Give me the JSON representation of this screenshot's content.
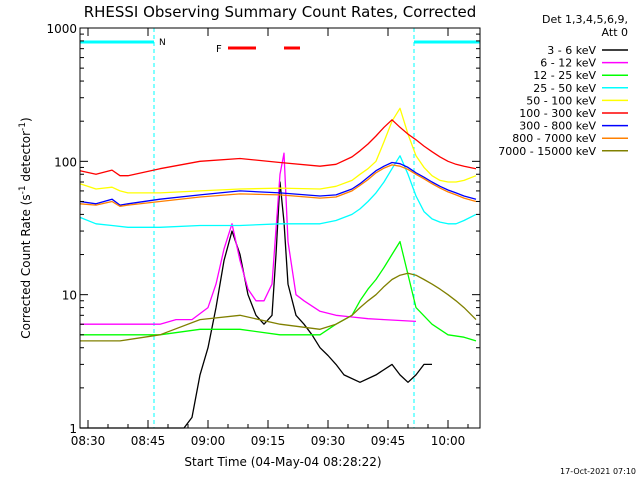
{
  "chart_data": {
    "type": "line",
    "title": "RHESSI Observing Summary Count Rates, Corrected",
    "xlabel": "Start Time (04-May-04 08:28:22)",
    "ylabel_main": "Corrected Count Rate (s",
    "ylabel_sup1": "-1",
    "ylabel_mid": " detector",
    "ylabel_sup2": "-1",
    "ylabel_end": ")",
    "x_unit": "minutes since 08:28",
    "xlim": [
      0,
      100
    ],
    "ylim": [
      1,
      1000
    ],
    "yscale": "log",
    "x_ticks": [
      {
        "v": 2,
        "label": "08:30"
      },
      {
        "v": 17,
        "label": "08:45"
      },
      {
        "v": 32,
        "label": "09:00"
      },
      {
        "v": 47,
        "label": "09:15"
      },
      {
        "v": 62,
        "label": "09:30"
      },
      {
        "v": 77,
        "label": "09:45"
      },
      {
        "v": 92,
        "label": "10:00"
      }
    ],
    "y_ticks": [
      {
        "v": 1,
        "label": "1"
      },
      {
        "v": 10,
        "label": "10"
      },
      {
        "v": 100,
        "label": "100"
      },
      {
        "v": 1000,
        "label": "1000"
      }
    ],
    "legend": {
      "placement": "right",
      "header1": "Det 1,3,4,5,6,9,",
      "header2": "Att 0"
    },
    "annotations": {
      "night_label": "N",
      "flare_label": "F",
      "timestamp": "17-Oct-2021 07:10"
    },
    "night_intervals": [
      [
        0,
        18.5
      ],
      [
        83.5,
        100
      ]
    ],
    "flare_marks": [
      [
        37,
        44
      ],
      [
        51,
        55
      ]
    ],
    "series": [
      {
        "name": "3 - 6 keV",
        "color": "#000000",
        "x": [
          0,
          18,
          26,
          28,
          30,
          32,
          34,
          36,
          38,
          40,
          42,
          44,
          46,
          48,
          49,
          50,
          51,
          52,
          54,
          56,
          58,
          60,
          62,
          64,
          66,
          70,
          74,
          78,
          80,
          82,
          84,
          86,
          88
        ],
        "y": [
          1,
          1,
          1,
          1.2,
          2.5,
          4,
          8,
          18,
          30,
          20,
          10,
          7,
          6,
          7,
          20,
          70,
          35,
          12,
          7,
          6,
          5,
          4,
          3.5,
          3,
          2.5,
          2.2,
          2.5,
          3,
          2.5,
          2.2,
          2.5,
          3,
          3
        ]
      },
      {
        "name": "6 - 12 keV",
        "color": "#ff00ff",
        "x": [
          0,
          20,
          24,
          28,
          32,
          34,
          36,
          38,
          40,
          42,
          44,
          46,
          48,
          50,
          51,
          52,
          54,
          56,
          60,
          64,
          68,
          72,
          76,
          80,
          84
        ],
        "y": [
          6,
          6,
          6.5,
          6.5,
          8,
          12,
          22,
          34,
          18,
          11,
          9,
          9,
          12,
          80,
          115,
          25,
          10,
          9,
          7.5,
          7,
          6.8,
          6.6,
          6.5,
          6.4,
          6.3
        ]
      },
      {
        "name": "12 - 25 keV",
        "color": "#00ff00",
        "x": [
          0,
          10,
          20,
          30,
          40,
          50,
          60,
          64,
          68,
          70,
          72,
          74,
          76,
          78,
          80,
          84,
          88,
          92,
          96,
          99
        ],
        "y": [
          5,
          5,
          5,
          5.5,
          5.5,
          5,
          5,
          6,
          7,
          9,
          11,
          13,
          16,
          20,
          25,
          8,
          6,
          5,
          4.8,
          4.5
        ]
      },
      {
        "name": "25 - 50 keV",
        "color": "#00ffff",
        "x": [
          0,
          4,
          8,
          12,
          20,
          30,
          40,
          50,
          60,
          64,
          68,
          70,
          72,
          74,
          76,
          78,
          80,
          82,
          84,
          86,
          88,
          90,
          92,
          94,
          96,
          99
        ],
        "y": [
          38,
          34,
          33,
          32,
          32,
          33,
          33,
          34,
          34,
          36,
          40,
          44,
          50,
          58,
          70,
          88,
          110,
          80,
          55,
          42,
          37,
          35,
          34,
          34,
          36,
          40
        ]
      },
      {
        "name": "50 - 100 keV",
        "color": "#ffff00",
        "x": [
          0,
          4,
          8,
          10,
          12,
          20,
          30,
          40,
          50,
          60,
          64,
          68,
          70,
          72,
          74,
          76,
          78,
          80,
          82,
          84,
          86,
          88,
          90,
          92,
          94,
          96,
          99
        ],
        "y": [
          68,
          62,
          64,
          60,
          58,
          58,
          60,
          62,
          63,
          62,
          65,
          72,
          80,
          88,
          100,
          140,
          200,
          250,
          160,
          110,
          90,
          78,
          72,
          70,
          70,
          72,
          78
        ]
      },
      {
        "name": "100 - 300 keV",
        "color": "#ff0000",
        "x": [
          0,
          4,
          8,
          10,
          12,
          20,
          30,
          40,
          50,
          60,
          64,
          68,
          70,
          72,
          74,
          76,
          78,
          80,
          82,
          84,
          86,
          88,
          90,
          92,
          94,
          96,
          99
        ],
        "y": [
          85,
          80,
          86,
          78,
          78,
          88,
          100,
          105,
          98,
          92,
          95,
          108,
          120,
          135,
          155,
          180,
          205,
          180,
          160,
          145,
          130,
          118,
          108,
          100,
          95,
          92,
          88
        ]
      },
      {
        "name": "300 - 800 keV",
        "color": "#0000ff",
        "x": [
          0,
          4,
          8,
          10,
          12,
          20,
          30,
          40,
          50,
          60,
          64,
          68,
          70,
          72,
          74,
          76,
          78,
          80,
          82,
          84,
          86,
          88,
          90,
          92,
          94,
          96,
          99
        ],
        "y": [
          50,
          48,
          52,
          47,
          48,
          52,
          56,
          60,
          58,
          55,
          56,
          62,
          68,
          76,
          85,
          92,
          98,
          96,
          90,
          82,
          76,
          70,
          65,
          61,
          58,
          55,
          52
        ]
      },
      {
        "name": "800 - 7000 keV",
        "color": "#ff8000",
        "x": [
          0,
          4,
          8,
          10,
          12,
          20,
          30,
          40,
          50,
          60,
          64,
          68,
          70,
          72,
          74,
          76,
          78,
          80,
          82,
          84,
          86,
          88,
          90,
          92,
          94,
          96,
          99
        ],
        "y": [
          48,
          47,
          50,
          46,
          47,
          50,
          54,
          57,
          56,
          53,
          54,
          60,
          66,
          73,
          82,
          89,
          94,
          92,
          87,
          80,
          74,
          68,
          63,
          59,
          56,
          53,
          50
        ]
      },
      {
        "name": "7000 - 15000 keV",
        "color": "#808000",
        "x": [
          0,
          10,
          20,
          30,
          40,
          50,
          60,
          64,
          68,
          70,
          72,
          74,
          76,
          78,
          80,
          82,
          84,
          86,
          88,
          90,
          92,
          94,
          96,
          99
        ],
        "y": [
          4.5,
          4.5,
          5,
          6.5,
          7,
          6,
          5.5,
          6,
          7,
          8,
          9,
          10,
          11.5,
          13,
          14,
          14.5,
          14,
          13,
          12,
          11,
          10,
          9,
          8,
          6.5
        ]
      }
    ]
  }
}
